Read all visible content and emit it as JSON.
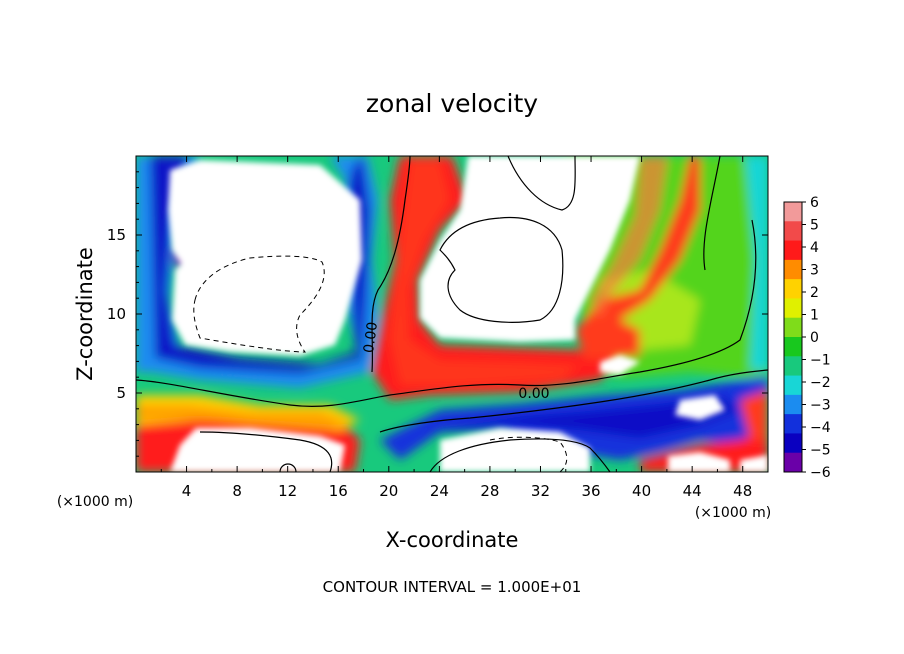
{
  "chart_data": {
    "type": "heatmap",
    "title": "zonal velocity",
    "xlabel": "X-coordinate",
    "ylabel": "Z-coordinate",
    "x_unit_left": "(×1000 m)",
    "x_unit_right": "(×1000 m)",
    "xlim": [
      0,
      50
    ],
    "ylim": [
      0,
      20
    ],
    "x_ticks": [
      4,
      8,
      12,
      16,
      20,
      24,
      28,
      32,
      36,
      40,
      44,
      48
    ],
    "y_ticks": [
      5,
      10,
      15
    ],
    "colorbar": {
      "ticks": [
        6,
        5,
        4,
        3,
        2,
        1,
        0,
        -1,
        -2,
        -3,
        -4,
        -5,
        -6
      ],
      "range": [
        -6,
        6
      ],
      "colors": [
        "#f29a9a",
        "#f24a4a",
        "#ff1a1a",
        "#ff8c00",
        "#ffd200",
        "#e0f000",
        "#7fdc1a",
        "#18c81e",
        "#18c97d",
        "#18d6d6",
        "#1b8cf0",
        "#1230dc",
        "#0a00c0",
        "#6a00a8"
      ]
    },
    "contour_labels": [
      "0.00",
      "0.00"
    ],
    "footer": "CONTOUR INTERVAL = 1.000E+01"
  }
}
